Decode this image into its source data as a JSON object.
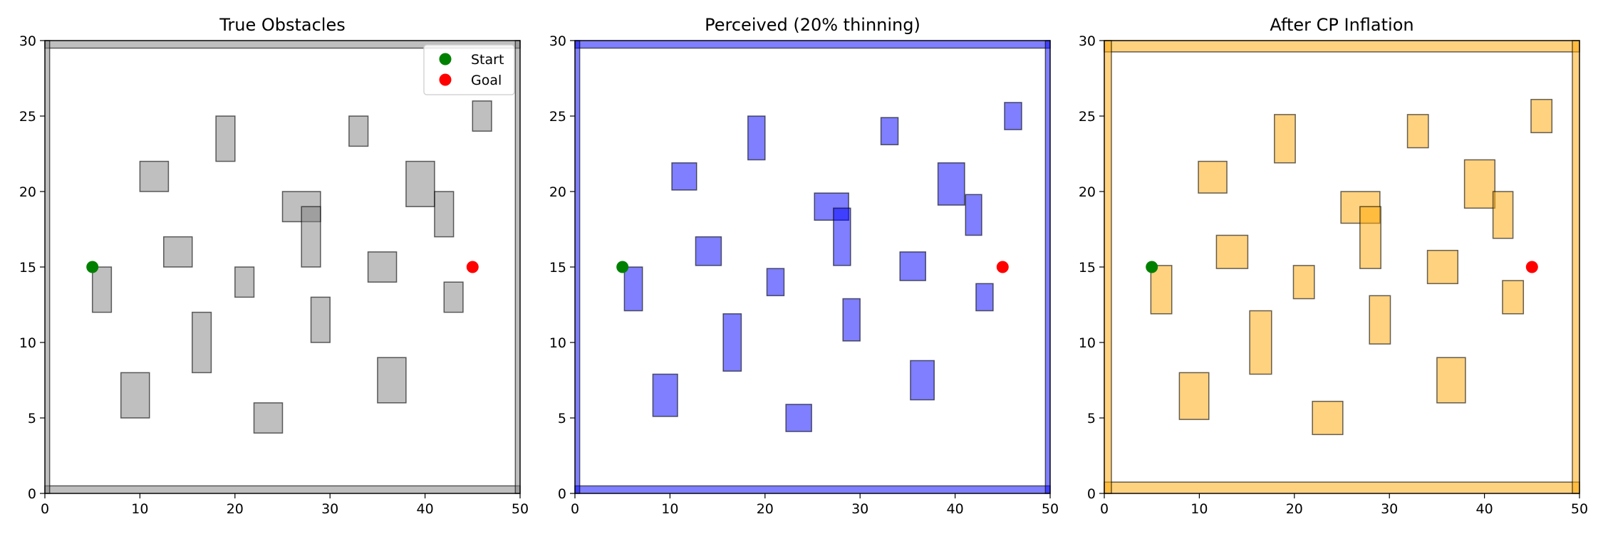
{
  "chart_data": [
    {
      "type": "scatter",
      "title": "True Obstacles",
      "xlim": [
        0,
        50
      ],
      "ylim": [
        0,
        30
      ],
      "xticks": [
        0,
        10,
        20,
        30,
        40,
        50
      ],
      "yticks": [
        0,
        5,
        10,
        15,
        20,
        25,
        30
      ],
      "obstacle_fill": "#808080",
      "obstacle_opacity": 0.5,
      "obstacles": [
        [
          0,
          0,
          50,
          0.5
        ],
        [
          0,
          29.5,
          50,
          0.5
        ],
        [
          0,
          0,
          0.5,
          30
        ],
        [
          49.5,
          0,
          0.5,
          30
        ],
        [
          5,
          12,
          2,
          3
        ],
        [
          8,
          5,
          3,
          3
        ],
        [
          10,
          20,
          3,
          2
        ],
        [
          12.5,
          15,
          3,
          2
        ],
        [
          15.5,
          8,
          2,
          4
        ],
        [
          18,
          22,
          2,
          3
        ],
        [
          20,
          13,
          2,
          2
        ],
        [
          22,
          4,
          3,
          2
        ],
        [
          25,
          18,
          4,
          2
        ],
        [
          27,
          15,
          2,
          4
        ],
        [
          28,
          10,
          2,
          3
        ],
        [
          32,
          23,
          2,
          2
        ],
        [
          34,
          14,
          3,
          2
        ],
        [
          35,
          6,
          3,
          3
        ],
        [
          38,
          19,
          3,
          3
        ],
        [
          41,
          17,
          2,
          3
        ],
        [
          42,
          12,
          2,
          2
        ],
        [
          45,
          24,
          2,
          2
        ]
      ],
      "start": [
        5,
        15
      ],
      "goal": [
        45,
        15
      ],
      "legend": {
        "placement": "upper-right",
        "entries": [
          "Start",
          "Goal"
        ]
      }
    },
    {
      "type": "scatter",
      "title": "Perceived (20% thinning)",
      "xlim": [
        0,
        50
      ],
      "ylim": [
        0,
        30
      ],
      "xticks": [
        0,
        10,
        20,
        30,
        40,
        50
      ],
      "yticks": [
        0,
        5,
        10,
        15,
        20,
        25,
        30
      ],
      "obstacle_fill": "#0000ff",
      "obstacle_opacity": 0.5,
      "obstacles": [
        [
          0,
          0,
          50,
          0.5
        ],
        [
          0,
          29.5,
          50,
          0.5
        ],
        [
          0,
          0,
          0.5,
          30
        ],
        [
          49.5,
          0,
          0.5,
          30
        ],
        [
          5.2,
          12.1,
          1.9,
          2.9
        ],
        [
          8.2,
          5.1,
          2.6,
          2.8
        ],
        [
          10.2,
          20.1,
          2.6,
          1.8
        ],
        [
          12.7,
          15.1,
          2.7,
          1.9
        ],
        [
          15.6,
          8.1,
          1.9,
          3.8
        ],
        [
          18.2,
          22.1,
          1.8,
          2.9
        ],
        [
          20.2,
          13.1,
          1.8,
          1.8
        ],
        [
          22.2,
          4.1,
          2.7,
          1.8
        ],
        [
          25.2,
          18.1,
          3.6,
          1.8
        ],
        [
          27.2,
          15.1,
          1.8,
          3.8
        ],
        [
          28.2,
          10.1,
          1.8,
          2.8
        ],
        [
          32.2,
          23.1,
          1.8,
          1.8
        ],
        [
          34.2,
          14.1,
          2.7,
          1.9
        ],
        [
          35.3,
          6.2,
          2.5,
          2.6
        ],
        [
          38.2,
          19.1,
          2.8,
          2.8
        ],
        [
          41.1,
          17.1,
          1.7,
          2.7
        ],
        [
          42.2,
          12.1,
          1.8,
          1.8
        ],
        [
          45.2,
          24.1,
          1.8,
          1.8
        ]
      ],
      "start": [
        5,
        15
      ],
      "goal": [
        45,
        15
      ]
    },
    {
      "type": "scatter",
      "title": "After CP Inflation",
      "xlim": [
        0,
        50
      ],
      "ylim": [
        0,
        30
      ],
      "xticks": [
        0,
        10,
        20,
        30,
        40,
        50
      ],
      "yticks": [
        0,
        5,
        10,
        15,
        20,
        25,
        30
      ],
      "obstacle_fill": "#ffa500",
      "obstacle_opacity": 0.5,
      "obstacles": [
        [
          0,
          0,
          50,
          0.75
        ],
        [
          0,
          29.25,
          50,
          0.75
        ],
        [
          0,
          0,
          0.75,
          30
        ],
        [
          49.25,
          0,
          0.75,
          30
        ],
        [
          4.9,
          11.9,
          2.2,
          3.2
        ],
        [
          7.9,
          4.9,
          3.1,
          3.1
        ],
        [
          9.9,
          19.9,
          3,
          2.1
        ],
        [
          11.8,
          14.9,
          3.3,
          2.2
        ],
        [
          15.3,
          7.9,
          2.3,
          4.2
        ],
        [
          17.9,
          21.9,
          2.2,
          3.2
        ],
        [
          19.9,
          12.9,
          2.2,
          2.2
        ],
        [
          21.9,
          3.9,
          3.2,
          2.2
        ],
        [
          24.9,
          17.9,
          4.1,
          2.1
        ],
        [
          26.9,
          14.9,
          2.2,
          4.1
        ],
        [
          27.9,
          9.9,
          2.2,
          3.2
        ],
        [
          31.9,
          22.9,
          2.2,
          2.2
        ],
        [
          34.0,
          13.9,
          3.2,
          2.2
        ],
        [
          35.0,
          6.0,
          3.0,
          3.0
        ],
        [
          37.9,
          18.9,
          3.2,
          3.2
        ],
        [
          40.9,
          16.9,
          2.1,
          3.1
        ],
        [
          41.9,
          11.9,
          2.2,
          2.2
        ],
        [
          44.9,
          23.9,
          2.2,
          2.2
        ]
      ],
      "start": [
        5,
        15
      ],
      "goal": [
        45,
        15
      ]
    }
  ],
  "colors": {
    "start": "#008000",
    "goal": "#ff0000"
  }
}
